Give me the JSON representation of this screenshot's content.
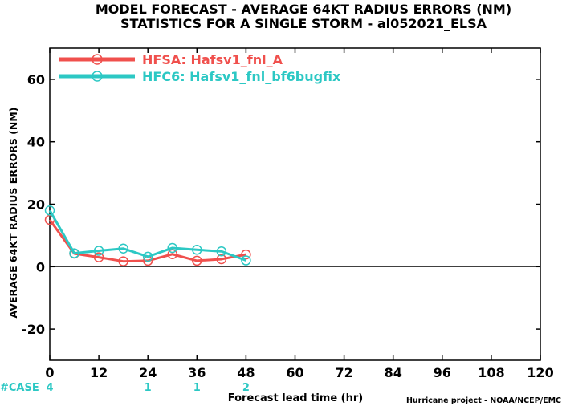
{
  "chart_data": {
    "type": "line",
    "title": [
      "MODEL FORECAST - AVERAGE 64KT RADIUS ERRORS (NM)",
      "STATISTICS FOR A SINGLE STORM - al052021_ELSA"
    ],
    "xlabel": "Forecast lead time (hr)",
    "ylabel": "AVERAGE 64KT RADIUS ERRORS (NM)",
    "xlim": [
      0,
      120
    ],
    "ylim": [
      -30,
      70
    ],
    "xticks": [
      0,
      12,
      24,
      36,
      48,
      60,
      72,
      84,
      96,
      108,
      120
    ],
    "yticks": [
      -20,
      0,
      20,
      40,
      60
    ],
    "grid": false,
    "zero_line": true,
    "legend_position": "top-left",
    "series": [
      {
        "name": "HFSA: Hafsv1_fnl_A",
        "color": "#f0504d",
        "x": [
          0,
          6,
          12,
          18,
          24,
          30,
          36,
          42,
          48
        ],
        "values": [
          15,
          4.2,
          3,
          1.7,
          1.9,
          4,
          1.9,
          2.4,
          3.9
        ]
      },
      {
        "name": "HFC6: Hafsv1_fnl_bf6bugfix",
        "color": "#2cc8c4",
        "x": [
          0,
          6,
          12,
          18,
          24,
          30,
          36,
          42,
          48
        ],
        "values": [
          18,
          4.3,
          5.1,
          5.8,
          3.2,
          6,
          5.4,
          4.9,
          2
        ]
      }
    ],
    "case_row": {
      "label": "#CASE",
      "x": [
        0,
        24,
        36,
        48
      ],
      "counts": [
        "4",
        "1",
        "1",
        "2"
      ]
    },
    "credit": "Hurricane project - NOAA/NCEP/EMC"
  }
}
